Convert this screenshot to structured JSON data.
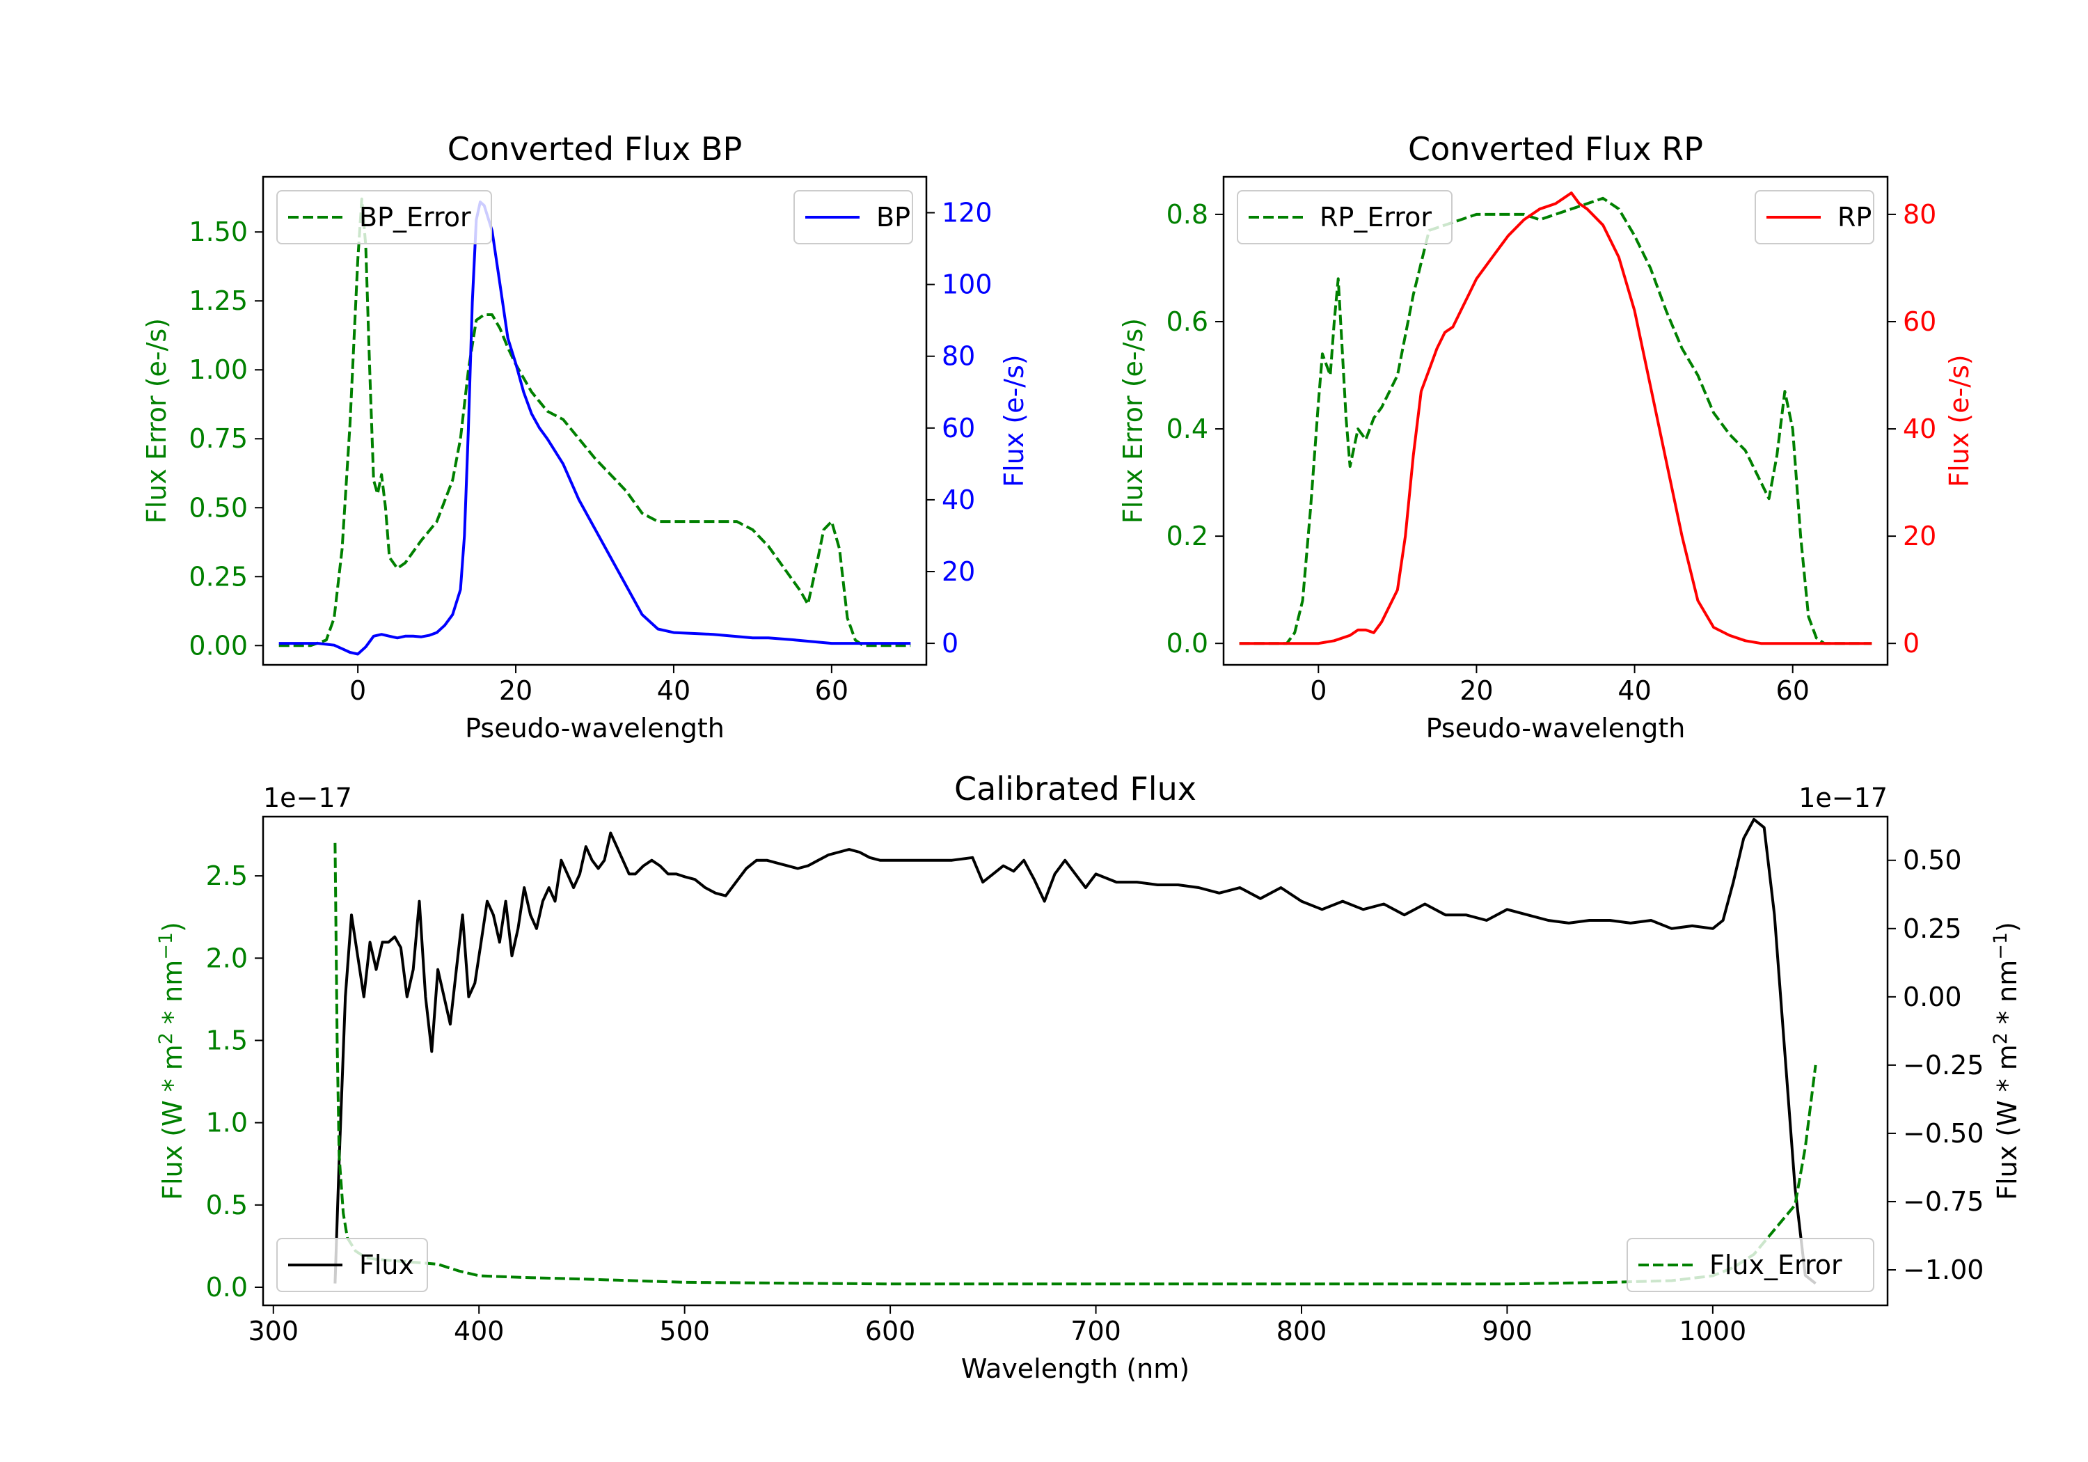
{
  "colors": {
    "error": "#008000",
    "bp": "#0000ff",
    "rp": "#ff0000",
    "flux": "#000000",
    "axis": "#000000"
  },
  "chart_data": [
    {
      "id": "bp",
      "type": "line",
      "title": "Converted Flux BP",
      "xlabel": "Pseudo-wavelength",
      "xlim": [
        -12,
        72
      ],
      "xticks": [
        0,
        20,
        40,
        60
      ],
      "left_axis": {
        "label": "Flux Error (e-/s)",
        "color": "#008000",
        "ylim": [
          -0.07,
          1.7
        ],
        "ticks": [
          0.0,
          0.25,
          0.5,
          0.75,
          1.0,
          1.25,
          1.5
        ],
        "tick_labels": [
          "0.00",
          "0.25",
          "0.50",
          "0.75",
          "1.00",
          "1.25",
          "1.50"
        ]
      },
      "right_axis": {
        "label": "Flux (e-/s)",
        "color": "#0000ff",
        "ylim": [
          -6,
          130
        ],
        "ticks": [
          0,
          20,
          40,
          60,
          80,
          100,
          120
        ],
        "tick_labels": [
          "0",
          "20",
          "40",
          "60",
          "80",
          "100",
          "120"
        ]
      },
      "series": [
        {
          "name": "BP_Error",
          "axis": "left",
          "style": "dashed",
          "x": [
            -10,
            -6,
            -4,
            -3,
            -2,
            -1,
            0,
            0.5,
            1,
            1.5,
            2,
            2.5,
            3,
            3.5,
            4,
            5,
            6,
            7,
            8,
            10,
            12,
            13,
            14,
            15,
            16,
            17,
            18,
            19,
            20,
            22,
            24,
            26,
            28,
            30,
            32,
            34,
            36,
            38,
            40,
            42,
            44,
            46,
            48,
            50,
            52,
            54,
            56,
            57,
            58,
            59,
            60,
            61,
            62,
            63,
            64,
            66,
            70
          ],
          "y": [
            0.0,
            0.0,
            0.02,
            0.1,
            0.35,
            0.8,
            1.4,
            1.62,
            1.45,
            1.0,
            0.6,
            0.55,
            0.62,
            0.5,
            0.32,
            0.28,
            0.3,
            0.34,
            0.38,
            0.45,
            0.6,
            0.75,
            1.0,
            1.18,
            1.2,
            1.2,
            1.15,
            1.08,
            1.02,
            0.92,
            0.85,
            0.82,
            0.75,
            0.68,
            0.62,
            0.56,
            0.48,
            0.45,
            0.45,
            0.45,
            0.45,
            0.45,
            0.45,
            0.42,
            0.36,
            0.28,
            0.2,
            0.15,
            0.28,
            0.42,
            0.45,
            0.35,
            0.1,
            0.02,
            0.0,
            0.0,
            0.0
          ]
        },
        {
          "name": "BP",
          "axis": "right",
          "style": "solid",
          "x": [
            -10,
            -5,
            -3,
            -2,
            -1,
            0,
            1,
            2,
            3,
            4,
            5,
            6,
            7,
            8,
            9,
            10,
            11,
            12,
            13,
            13.5,
            14,
            14.5,
            15,
            15.5,
            16,
            17,
            18,
            19,
            20,
            21,
            22,
            23,
            24,
            26,
            28,
            30,
            32,
            34,
            36,
            38,
            40,
            45,
            50,
            52,
            55,
            60,
            70
          ],
          "y": [
            0,
            0,
            -0.5,
            -1.5,
            -2.5,
            -3,
            -1,
            2,
            2.5,
            2,
            1.5,
            2,
            2,
            1.8,
            2.2,
            3,
            5,
            8,
            15,
            30,
            60,
            95,
            118,
            123,
            122,
            115,
            100,
            85,
            78,
            70,
            64,
            60,
            57,
            50,
            40,
            32,
            24,
            16,
            8,
            4,
            3,
            2.5,
            1.5,
            1.5,
            1,
            0,
            0
          ]
        }
      ],
      "legend": [
        {
          "label": "BP_Error",
          "position": "top-left"
        },
        {
          "label": "BP",
          "position": "top-right"
        }
      ]
    },
    {
      "id": "rp",
      "type": "line",
      "title": "Converted Flux RP",
      "xlabel": "Pseudo-wavelength",
      "xlim": [
        -12,
        72
      ],
      "xticks": [
        0,
        20,
        40,
        60
      ],
      "left_axis": {
        "label": "Flux Error (e-/s)",
        "color": "#008000",
        "ylim": [
          -0.04,
          0.87
        ],
        "ticks": [
          0.0,
          0.2,
          0.4,
          0.6,
          0.8
        ],
        "tick_labels": [
          "0.0",
          "0.2",
          "0.4",
          "0.6",
          "0.8"
        ]
      },
      "right_axis": {
        "label": "Flux (e-/s)",
        "color": "#ff0000",
        "ylim": [
          -4,
          87
        ],
        "ticks": [
          0,
          20,
          40,
          60,
          80
        ],
        "tick_labels": [
          "0",
          "20",
          "40",
          "60",
          "80"
        ]
      },
      "series": [
        {
          "name": "RP_Error",
          "axis": "left",
          "style": "dashed",
          "x": [
            -10,
            -4,
            -3,
            -2,
            -1,
            0,
            0.5,
            1,
            1.5,
            2,
            2.5,
            3,
            3.5,
            4,
            5,
            6,
            7,
            8,
            10,
            12,
            14,
            16,
            18,
            20,
            22,
            24,
            26,
            28,
            30,
            32,
            34,
            36,
            38,
            40,
            42,
            44,
            46,
            48,
            50,
            52,
            54,
            56,
            57,
            58,
            59,
            60,
            61,
            62,
            63,
            64,
            70
          ],
          "y": [
            0.0,
            0.0,
            0.02,
            0.08,
            0.25,
            0.45,
            0.54,
            0.52,
            0.5,
            0.6,
            0.68,
            0.55,
            0.42,
            0.33,
            0.4,
            0.38,
            0.42,
            0.44,
            0.5,
            0.65,
            0.77,
            0.78,
            0.79,
            0.8,
            0.8,
            0.8,
            0.8,
            0.79,
            0.8,
            0.81,
            0.82,
            0.83,
            0.81,
            0.76,
            0.7,
            0.62,
            0.55,
            0.5,
            0.43,
            0.39,
            0.36,
            0.3,
            0.27,
            0.35,
            0.47,
            0.4,
            0.2,
            0.05,
            0.01,
            0.0,
            0.0
          ]
        },
        {
          "name": "RP",
          "axis": "right",
          "style": "solid",
          "x": [
            -10,
            0,
            2,
            4,
            5,
            6,
            7,
            8,
            10,
            11,
            12,
            13,
            14,
            15,
            16,
            17,
            18,
            19,
            20,
            22,
            24,
            26,
            28,
            30,
            31,
            32,
            33,
            34,
            36,
            38,
            40,
            42,
            44,
            46,
            48,
            50,
            52,
            54,
            56,
            60,
            70
          ],
          "y": [
            0,
            0,
            0.5,
            1.5,
            2.5,
            2.5,
            2,
            4,
            10,
            20,
            35,
            47,
            51,
            55,
            58,
            59,
            62,
            65,
            68,
            72,
            76,
            79,
            81,
            82,
            83,
            84,
            82,
            81,
            78,
            72,
            62,
            48,
            34,
            20,
            8,
            3,
            1.5,
            0.5,
            0,
            0,
            0
          ]
        }
      ],
      "legend": [
        {
          "label": "RP_Error",
          "position": "top-left"
        },
        {
          "label": "RP",
          "position": "top-right"
        }
      ]
    },
    {
      "id": "cal",
      "type": "line",
      "title": "Calibrated Flux",
      "xlabel": "Wavelength (nm)",
      "xlim": [
        295,
        1085
      ],
      "xticks": [
        300,
        400,
        500,
        600,
        700,
        800,
        900,
        1000
      ],
      "left_axis": {
        "label": "Flux (W * m² * nm⁻¹)",
        "label_base": "Flux (W * m",
        "label_sup1": "2",
        "label_mid": " * nm",
        "label_sup2": "−1",
        "label_end": ")",
        "color": "#008000",
        "offset_text": "1e−17",
        "ylim": [
          -0.11,
          2.86
        ],
        "ticks": [
          0.0,
          0.5,
          1.0,
          1.5,
          2.0,
          2.5
        ],
        "tick_labels": [
          "0.0",
          "0.5",
          "1.0",
          "1.5",
          "2.0",
          "2.5"
        ]
      },
      "right_axis": {
        "label": "Flux (W * m² * nm⁻¹)",
        "label_base": "Flux (W * m",
        "label_sup1": "2",
        "label_mid": " * nm",
        "label_sup2": "−1",
        "label_end": ")",
        "color": "#000000",
        "offset_text": "1e−17",
        "ylim": [
          -1.13,
          0.66
        ],
        "ticks": [
          -1.0,
          -0.75,
          -0.5,
          -0.25,
          0.0,
          0.25,
          0.5
        ],
        "tick_labels": [
          "−1.00",
          "−0.75",
          "−0.50",
          "−0.25",
          "0.00",
          "0.25",
          "0.50"
        ]
      },
      "series": [
        {
          "name": "Flux",
          "axis": "right",
          "style": "solid",
          "x": [
            330,
            332,
            335,
            338,
            341,
            344,
            347,
            350,
            353,
            356,
            359,
            362,
            365,
            368,
            371,
            374,
            377,
            380,
            383,
            386,
            389,
            392,
            395,
            398,
            401,
            404,
            407,
            410,
            413,
            416,
            419,
            422,
            425,
            428,
            431,
            434,
            437,
            440,
            443,
            446,
            449,
            452,
            455,
            458,
            461,
            464,
            467,
            470,
            473,
            476,
            480,
            484,
            488,
            492,
            496,
            500,
            505,
            510,
            515,
            520,
            525,
            530,
            535,
            540,
            545,
            550,
            555,
            560,
            565,
            570,
            575,
            580,
            585,
            590,
            595,
            600,
            610,
            620,
            630,
            640,
            645,
            650,
            655,
            660,
            665,
            670,
            675,
            680,
            685,
            690,
            695,
            700,
            710,
            720,
            730,
            740,
            750,
            760,
            770,
            780,
            790,
            800,
            810,
            820,
            830,
            840,
            850,
            860,
            870,
            880,
            890,
            900,
            910,
            920,
            930,
            940,
            950,
            960,
            970,
            980,
            990,
            1000,
            1005,
            1010,
            1015,
            1020,
            1025,
            1030,
            1035,
            1040,
            1045,
            1050
          ],
          "y": [
            -1.05,
            -0.6,
            0.0,
            0.3,
            0.15,
            0.0,
            0.2,
            0.1,
            0.2,
            0.2,
            0.22,
            0.18,
            0.0,
            0.1,
            0.35,
            0.0,
            -0.2,
            0.1,
            0.0,
            -0.1,
            0.1,
            0.3,
            0.0,
            0.05,
            0.2,
            0.35,
            0.3,
            0.2,
            0.35,
            0.15,
            0.25,
            0.4,
            0.3,
            0.25,
            0.35,
            0.4,
            0.35,
            0.5,
            0.45,
            0.4,
            0.45,
            0.55,
            0.5,
            0.47,
            0.5,
            0.6,
            0.55,
            0.5,
            0.45,
            0.45,
            0.48,
            0.5,
            0.48,
            0.45,
            0.45,
            0.44,
            0.43,
            0.4,
            0.38,
            0.37,
            0.42,
            0.47,
            0.5,
            0.5,
            0.49,
            0.48,
            0.47,
            0.48,
            0.5,
            0.52,
            0.53,
            0.54,
            0.53,
            0.51,
            0.5,
            0.5,
            0.5,
            0.5,
            0.5,
            0.51,
            0.42,
            0.45,
            0.48,
            0.46,
            0.5,
            0.43,
            0.35,
            0.45,
            0.5,
            0.45,
            0.4,
            0.45,
            0.42,
            0.42,
            0.41,
            0.41,
            0.4,
            0.38,
            0.4,
            0.36,
            0.4,
            0.35,
            0.32,
            0.35,
            0.32,
            0.34,
            0.3,
            0.34,
            0.3,
            0.3,
            0.28,
            0.32,
            0.3,
            0.28,
            0.27,
            0.28,
            0.28,
            0.27,
            0.28,
            0.25,
            0.26,
            0.25,
            0.28,
            0.42,
            0.58,
            0.65,
            0.62,
            0.3,
            -0.2,
            -0.7,
            -1.02,
            -1.05
          ]
        },
        {
          "name": "Flux_Error",
          "axis": "left",
          "style": "dashed",
          "x": [
            330,
            331,
            332,
            334,
            336,
            340,
            345,
            350,
            360,
            370,
            380,
            390,
            400,
            420,
            450,
            500,
            600,
            700,
            800,
            900,
            950,
            980,
            1000,
            1010,
            1020,
            1030,
            1040,
            1045,
            1050
          ],
          "y": [
            2.7,
            1.5,
            0.8,
            0.45,
            0.3,
            0.22,
            0.18,
            0.17,
            0.16,
            0.15,
            0.14,
            0.1,
            0.07,
            0.06,
            0.05,
            0.03,
            0.02,
            0.02,
            0.02,
            0.02,
            0.03,
            0.04,
            0.07,
            0.12,
            0.2,
            0.35,
            0.5,
            0.85,
            1.35
          ]
        }
      ],
      "legend": [
        {
          "label": "Flux",
          "position": "bottom-left"
        },
        {
          "label": "Flux_Error",
          "position": "bottom-right"
        }
      ]
    }
  ]
}
